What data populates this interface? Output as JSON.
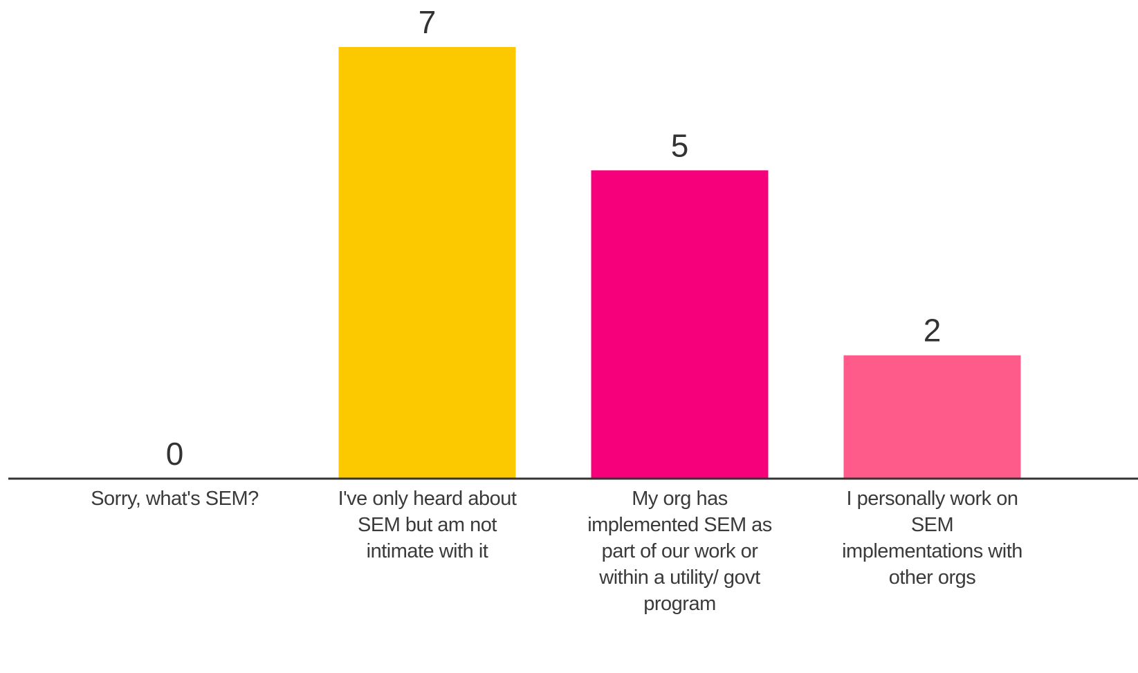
{
  "chart_data": {
    "type": "bar",
    "categories": [
      "Sorry, what's SEM?",
      "I've only heard about SEM but am not intimate with it",
      "My org has implemented SEM as part of our work or within a utility/ govt program",
      "I personally work on SEM implementations with other orgs"
    ],
    "values": [
      0,
      7,
      5,
      2
    ],
    "colors": [
      "#fcc800",
      "#fcc800",
      "#f7007b",
      "#fe5a8a"
    ]
  }
}
